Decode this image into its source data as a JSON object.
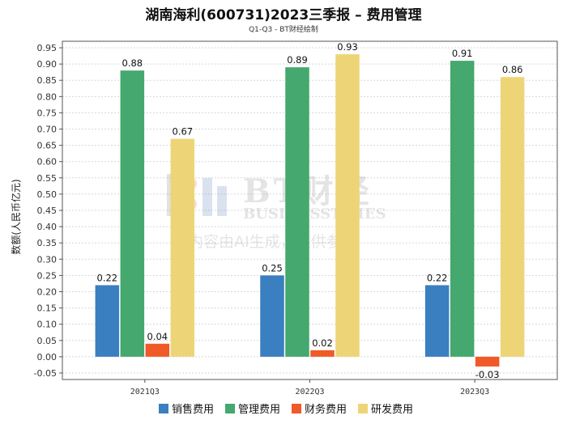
{
  "chart_data": {
    "type": "bar",
    "title": "湖南海利(600731)2023三季报 – 费用管理",
    "subtitle": "Q1-Q3 - BT财经绘制",
    "ylabel": "数额(人民币亿元)",
    "xlabel": "",
    "categories": [
      "2021Q3",
      "2022Q3",
      "2023Q3"
    ],
    "series": [
      {
        "name": "销售费用",
        "color": "#3a7fbf",
        "values": [
          0.22,
          0.25,
          0.22
        ]
      },
      {
        "name": "管理费用",
        "color": "#45a86e",
        "values": [
          0.88,
          0.89,
          0.91
        ]
      },
      {
        "name": "财务费用",
        "color": "#ef5a28",
        "values": [
          0.04,
          0.02,
          -0.03
        ]
      },
      {
        "name": "研发费用",
        "color": "#edd577",
        "values": [
          0.67,
          0.93,
          0.86
        ]
      }
    ],
    "ylim": [
      -0.07,
      0.97
    ],
    "yticks": [
      -0.05,
      0.0,
      0.05,
      0.1,
      0.15,
      0.2,
      0.25,
      0.3,
      0.35,
      0.4,
      0.45,
      0.5,
      0.55,
      0.6,
      0.65,
      0.7,
      0.75,
      0.8,
      0.85,
      0.9,
      0.95
    ],
    "grid": true,
    "legend_position": "bottom"
  },
  "watermark": {
    "brand": "BT财经",
    "brand_en": "BUSINESSTIMES",
    "notice": "内容由AI生成，仅供参考"
  }
}
